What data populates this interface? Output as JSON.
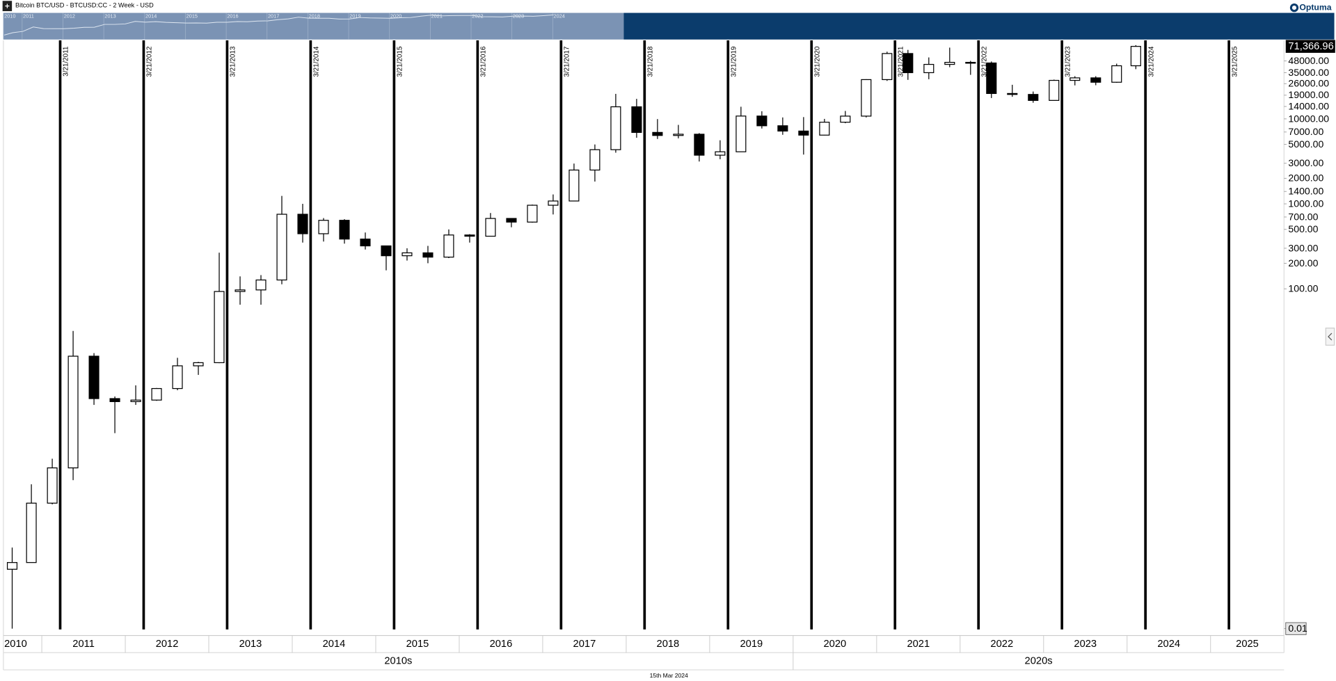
{
  "header": {
    "title": "Bitcoin BTC/USD - BTCUSD:CC - 2 Week - USD",
    "logo": "Optuma"
  },
  "navigator": {
    "years": [
      "2010",
      "2011",
      "2012",
      "2013",
      "2014",
      "2015",
      "2016",
      "2017",
      "2018",
      "2019",
      "2020",
      "2021",
      "2022",
      "2023",
      "2024"
    ]
  },
  "chart_data": {
    "type": "candlestick",
    "log_scale": true,
    "grid": false,
    "colors": {
      "up": "#ffffff",
      "down": "#000000",
      "outline": "#000000",
      "marker": "#000000"
    },
    "xlim": [
      2010.54,
      2025.88
    ],
    "ylim": [
      0.0087,
      84000
    ],
    "x": [
      2010.54,
      2010.75,
      2011.0,
      2011.25,
      2011.5,
      2011.75,
      2012.0,
      2012.25,
      2012.5,
      2012.75,
      2013.0,
      2013.25,
      2013.5,
      2013.75,
      2014.0,
      2014.25,
      2014.5,
      2014.75,
      2015.0,
      2015.25,
      2015.5,
      2015.75,
      2016.0,
      2016.25,
      2016.5,
      2016.75,
      2017.0,
      2017.25,
      2017.5,
      2017.75,
      2018.0,
      2018.25,
      2018.5,
      2018.75,
      2019.0,
      2019.25,
      2019.5,
      2019.75,
      2020.0,
      2020.25,
      2020.5,
      2020.75,
      2021.0,
      2021.25,
      2021.5,
      2021.75,
      2022.0,
      2022.25,
      2022.5,
      2022.75,
      2023.0,
      2023.25,
      2023.5,
      2023.75,
      2024.0
    ],
    "open": [
      0.05,
      0.06,
      0.3,
      0.78,
      16.1,
      5.1,
      4.7,
      4.9,
      6.7,
      12.4,
      13.5,
      93,
      97,
      127,
      754,
      445,
      640,
      385,
      320,
      245,
      265,
      236,
      430,
      416,
      673,
      610,
      963,
      1080,
      2500,
      4340,
      13880,
      6930,
      6380,
      6600,
      3740,
      4100,
      10800,
      8300,
      7190,
      6440,
      9140,
      10780,
      29000,
      58800,
      35000,
      43800,
      46300,
      45500,
      19900,
      19400,
      16500,
      28400,
      30400,
      27000,
      42200
    ],
    "high": [
      0.09,
      0.5,
      1.0,
      31.9,
      17.5,
      5.4,
      7.3,
      6.8,
      15.4,
      13.8,
      266,
      140,
      145,
      1240,
      1000,
      680,
      660,
      460,
      320,
      300,
      320,
      500,
      440,
      780,
      680,
      980,
      1290,
      2980,
      5000,
      19700,
      17200,
      9950,
      8500,
      6800,
      5600,
      13900,
      12300,
      10400,
      10500,
      10000,
      12400,
      29300,
      61800,
      64900,
      52900,
      69000,
      48200,
      47400,
      25200,
      21000,
      29000,
      31800,
      31800,
      44700,
      73800
    ],
    "low": [
      0.01,
      0.06,
      0.29,
      0.56,
      4.3,
      2.0,
      4.3,
      4.8,
      6.4,
      9.7,
      13.3,
      65,
      65,
      113,
      350,
      360,
      340,
      290,
      165,
      215,
      200,
      230,
      350,
      415,
      530,
      600,
      750,
      1080,
      1830,
      4000,
      6000,
      5800,
      5900,
      3150,
      3350,
      4100,
      7700,
      6500,
      3800,
      6400,
      8900,
      10400,
      28000,
      28800,
      29300,
      40600,
      33000,
      17600,
      18200,
      15500,
      16500,
      24800,
      24900,
      26600,
      38500
    ],
    "close": [
      0.06,
      0.3,
      0.78,
      16.1,
      5.1,
      4.7,
      4.9,
      6.7,
      12.4,
      13.5,
      93,
      97,
      127,
      754,
      445,
      640,
      385,
      320,
      245,
      265,
      236,
      430,
      416,
      673,
      610,
      963,
      1080,
      2500,
      4340,
      13880,
      6930,
      6380,
      6600,
      3740,
      4100,
      10800,
      8300,
      7190,
      6440,
      9140,
      10780,
      29000,
      58800,
      35000,
      43800,
      46300,
      45500,
      19900,
      19400,
      16500,
      28400,
      30400,
      27000,
      42200,
      71366.96
    ],
    "yticks": [
      {
        "value": 48000,
        "label": "48000.00"
      },
      {
        "value": 35000,
        "label": "35000.00"
      },
      {
        "value": 26000,
        "label": "26000.00"
      },
      {
        "value": 19000,
        "label": "19000.00"
      },
      {
        "value": 14000,
        "label": "14000.00"
      },
      {
        "value": 10000,
        "label": "10000.00"
      },
      {
        "value": 7000,
        "label": "7000.00"
      },
      {
        "value": 5000,
        "label": "5000.00"
      },
      {
        "value": 3000,
        "label": "3000.00"
      },
      {
        "value": 2000,
        "label": "2000.00"
      },
      {
        "value": 1400,
        "label": "1400.00"
      },
      {
        "value": 1000,
        "label": "1000.00"
      },
      {
        "value": 700,
        "label": "700.00"
      },
      {
        "value": 500,
        "label": "500.00"
      },
      {
        "value": 300,
        "label": "300.00"
      },
      {
        "value": 200,
        "label": "200.00"
      },
      {
        "value": 100,
        "label": "100.00"
      },
      0.01
    ],
    "last_price": {
      "value": 71366.96,
      "label": "71,366.96"
    },
    "xticks": [
      2010,
      2011,
      2012,
      2013,
      2014,
      2015,
      2016,
      2017,
      2018,
      2019,
      2020,
      2021,
      2022,
      2023,
      2024,
      2025
    ],
    "decades": [
      {
        "value": 2010,
        "label": "2010s"
      },
      {
        "value": 2020,
        "label": "2020s"
      }
    ],
    "markers": [
      {
        "value": 2011.22,
        "label": "3/21/2011"
      },
      {
        "value": 2012.22,
        "label": "3/21/2012"
      },
      {
        "value": 2013.22,
        "label": "3/21/2013"
      },
      {
        "value": 2014.22,
        "label": "3/21/2014"
      },
      {
        "value": 2015.22,
        "label": "3/21/2015"
      },
      {
        "value": 2016.22,
        "label": "3/21/2016"
      },
      {
        "value": 2017.22,
        "label": "3/21/2017"
      },
      {
        "value": 2018.22,
        "label": "3/21/2018"
      },
      {
        "value": 2019.22,
        "label": "3/21/2019"
      },
      {
        "value": 2020.22,
        "label": "3/21/2020"
      },
      {
        "value": 2021.22,
        "label": "3/21/2021"
      },
      {
        "value": 2022.22,
        "label": "3/21/2022"
      },
      {
        "value": 2023.22,
        "label": "3/21/2023"
      },
      {
        "value": 2024.22,
        "label": "3/21/2024"
      },
      {
        "value": 2025.22,
        "label": "3/21/2025"
      }
    ]
  },
  "footer": "15th Mar 2024"
}
